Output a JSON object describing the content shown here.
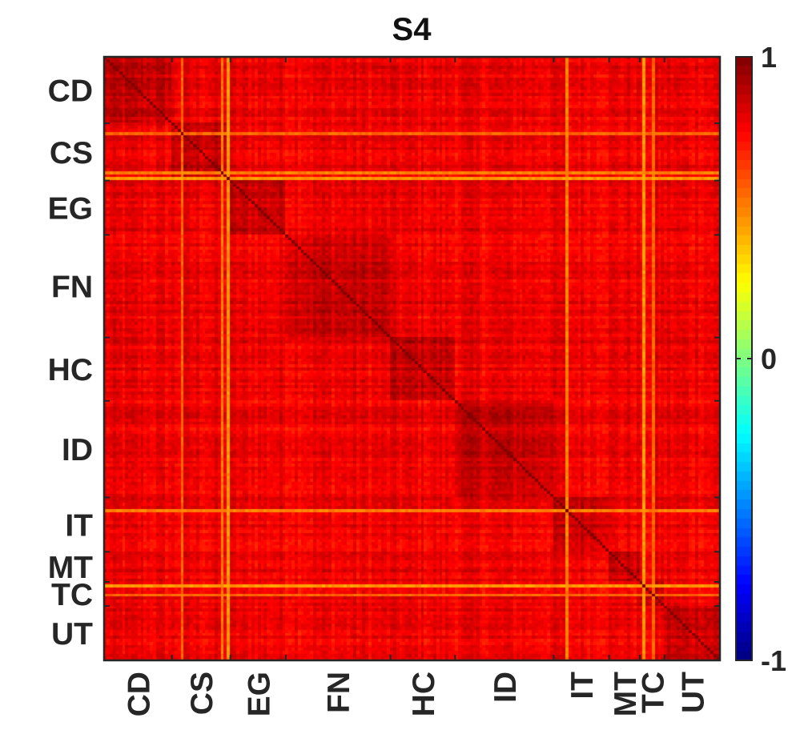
{
  "chart_data": {
    "type": "heatmap",
    "title": "S4",
    "xlabel": "",
    "ylabel": "",
    "matrix_size": 200,
    "groups": [
      {
        "label": "CD",
        "start": 0,
        "end": 22
      },
      {
        "label": "CS",
        "start": 22,
        "end": 41
      },
      {
        "label": "EG",
        "start": 41,
        "end": 59
      },
      {
        "label": "FN",
        "start": 59,
        "end": 93
      },
      {
        "label": "HC",
        "start": 93,
        "end": 114
      },
      {
        "label": "ID",
        "start": 114,
        "end": 146
      },
      {
        "label": "IT",
        "start": 146,
        "end": 164
      },
      {
        "label": "MT",
        "start": 164,
        "end": 174
      },
      {
        "label": "TC",
        "start": 174,
        "end": 182
      },
      {
        "label": "UT",
        "start": 182,
        "end": 200
      }
    ],
    "x_tick_labels": [
      "CD",
      "CS",
      "EG",
      "FN",
      "HC",
      "ID",
      "IT",
      "MT",
      "TC",
      "UT"
    ],
    "y_tick_labels": [
      "CD",
      "CS",
      "EG",
      "FN",
      "HC",
      "ID",
      "IT",
      "MT",
      "TC",
      "UT"
    ],
    "diagonal_value": 1,
    "typical_off_diagonal_value": 0.78,
    "within_group_value": 0.86,
    "low_correlation_indices": [
      25,
      38,
      40,
      150,
      175,
      178
    ],
    "low_correlation_values": [
      0.55,
      0.5,
      0.45,
      0.5,
      0.45,
      0.55
    ],
    "colorbar": {
      "colormap": "jet",
      "min": -1,
      "max": 1,
      "tick_values": [
        1,
        0,
        -1
      ],
      "tick_labels": [
        "1",
        "0",
        "-1"
      ]
    },
    "grid": false,
    "legend": "none"
  }
}
